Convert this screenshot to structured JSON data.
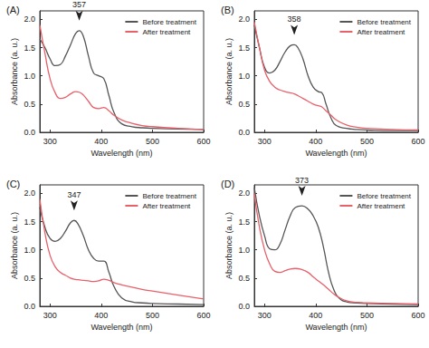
{
  "chart_data": [
    {
      "type": "line",
      "title": "(A)",
      "x_label": "Wavelength (nm)",
      "y_label": "Absorbance (a. u.)",
      "x": [
        280,
        290,
        300,
        310,
        320,
        330,
        340,
        350,
        357,
        365,
        375,
        385,
        395,
        405,
        415,
        425,
        440,
        460,
        480,
        500,
        550,
        600
      ],
      "series": [
        {
          "name": "Before treatment",
          "color": "#555555",
          "values": [
            1.65,
            1.5,
            1.3,
            1.18,
            1.2,
            1.35,
            1.55,
            1.75,
            1.8,
            1.7,
            1.35,
            1.05,
            1.0,
            0.95,
            0.65,
            0.35,
            0.15,
            0.1,
            0.08,
            0.07,
            0.06,
            0.05
          ]
        },
        {
          "name": "After treatment",
          "color": "#e8606a",
          "values": [
            1.9,
            1.4,
            0.95,
            0.7,
            0.6,
            0.62,
            0.68,
            0.72,
            0.71,
            0.66,
            0.55,
            0.44,
            0.42,
            0.44,
            0.38,
            0.3,
            0.22,
            0.16,
            0.12,
            0.1,
            0.07,
            0.05
          ]
        }
      ],
      "annotation": 357,
      "xlim": [
        280,
        600
      ],
      "xticks": [
        300,
        400,
        500,
        600
      ],
      "ylim": [
        0,
        2.15
      ],
      "yticks": [
        {
          "value": 0,
          "label": "0.0"
        },
        0.5,
        {
          "value": 1,
          "label": "1.0"
        },
        1.5,
        {
          "value": 2,
          "label": "2.0"
        }
      ],
      "grid": false,
      "legend": "upper right"
    },
    {
      "type": "line",
      "title": "(B)",
      "x_label": "Wavelength (nm)",
      "y_label": "Absorbance (a. u.)",
      "x": [
        280,
        290,
        300,
        310,
        320,
        330,
        340,
        350,
        358,
        365,
        375,
        385,
        395,
        405,
        412,
        420,
        430,
        440,
        460,
        480,
        500,
        550,
        600
      ],
      "series": [
        {
          "name": "Before treatment",
          "color": "#555555",
          "values": [
            1.9,
            1.5,
            1.15,
            1.05,
            1.1,
            1.25,
            1.42,
            1.53,
            1.55,
            1.5,
            1.3,
            1.0,
            0.8,
            0.72,
            0.7,
            0.5,
            0.25,
            0.12,
            0.07,
            0.05,
            0.04,
            0.03,
            0.03
          ]
        },
        {
          "name": "After treatment",
          "color": "#e8606a",
          "values": [
            1.95,
            1.5,
            1.1,
            0.9,
            0.8,
            0.75,
            0.72,
            0.7,
            0.68,
            0.65,
            0.6,
            0.55,
            0.5,
            0.47,
            0.45,
            0.38,
            0.3,
            0.22,
            0.13,
            0.09,
            0.07,
            0.05,
            0.04
          ]
        }
      ],
      "annotation": 358,
      "xlim": [
        280,
        600
      ],
      "xticks": [
        300,
        400,
        500,
        600
      ],
      "ylim": [
        0,
        2.15
      ],
      "yticks": [
        {
          "value": 0,
          "label": "0.0"
        },
        0.5,
        {
          "value": 1,
          "label": "1.0"
        },
        1.5,
        {
          "value": 2,
          "label": "2.0"
        }
      ],
      "grid": false,
      "legend": "upper right"
    },
    {
      "type": "line",
      "title": "(C)",
      "x_label": "Wavelength (nm)",
      "y_label": "Absorbance (a. u.)",
      "x": [
        280,
        290,
        300,
        310,
        320,
        330,
        340,
        347,
        355,
        365,
        375,
        385,
        395,
        405,
        415,
        425,
        440,
        460,
        480,
        500,
        550,
        600
      ],
      "series": [
        {
          "name": "Before treatment",
          "color": "#555555",
          "values": [
            1.75,
            1.4,
            1.2,
            1.15,
            1.2,
            1.33,
            1.48,
            1.52,
            1.45,
            1.25,
            1.0,
            0.85,
            0.8,
            0.8,
            0.6,
            0.35,
            0.15,
            0.08,
            0.06,
            0.05,
            0.04,
            0.03
          ]
        },
        {
          "name": "After treatment",
          "color": "#e8606a",
          "values": [
            1.9,
            1.3,
            0.9,
            0.7,
            0.6,
            0.55,
            0.5,
            0.48,
            0.47,
            0.46,
            0.45,
            0.44,
            0.45,
            0.48,
            0.46,
            0.42,
            0.38,
            0.34,
            0.3,
            0.27,
            0.2,
            0.13
          ]
        }
      ],
      "annotation": 347,
      "xlim": [
        280,
        600
      ],
      "xticks": [
        300,
        400,
        500,
        600
      ],
      "ylim": [
        0,
        2.15
      ],
      "yticks": [
        {
          "value": 0,
          "label": "0.0"
        },
        0.5,
        {
          "value": 1,
          "label": "1.0"
        },
        1.5,
        {
          "value": 2,
          "label": "2.0"
        }
      ],
      "grid": false,
      "legend": "upper right"
    },
    {
      "type": "line",
      "title": "(D)",
      "x_label": "Wavelength (nm)",
      "y_label": "Absorbance (a. u.)",
      "x": [
        280,
        290,
        300,
        310,
        320,
        330,
        340,
        350,
        360,
        373,
        385,
        395,
        405,
        415,
        425,
        435,
        445,
        460,
        480,
        500,
        550,
        600
      ],
      "series": [
        {
          "name": "Before treatment",
          "color": "#555555",
          "values": [
            2.1,
            1.6,
            1.25,
            1.02,
            1.0,
            1.1,
            1.35,
            1.6,
            1.75,
            1.78,
            1.72,
            1.6,
            1.4,
            1.05,
            0.6,
            0.3,
            0.15,
            0.08,
            0.06,
            0.05,
            0.04,
            0.03
          ]
        },
        {
          "name": "After treatment",
          "color": "#e8606a",
          "values": [
            2.0,
            1.4,
            1.0,
            0.75,
            0.62,
            0.6,
            0.63,
            0.66,
            0.67,
            0.65,
            0.6,
            0.52,
            0.45,
            0.38,
            0.3,
            0.22,
            0.16,
            0.1,
            0.07,
            0.06,
            0.05,
            0.04
          ]
        }
      ],
      "annotation": 373,
      "xlim": [
        280,
        600
      ],
      "xticks": [
        300,
        400,
        500,
        600
      ],
      "ylim": [
        0,
        2.15
      ],
      "yticks": [
        {
          "value": 0,
          "label": "0.0"
        },
        0.5,
        {
          "value": 1,
          "label": "1.0"
        },
        1.5,
        {
          "value": 2,
          "label": "2.0"
        }
      ],
      "grid": false,
      "legend": "upper right"
    }
  ]
}
